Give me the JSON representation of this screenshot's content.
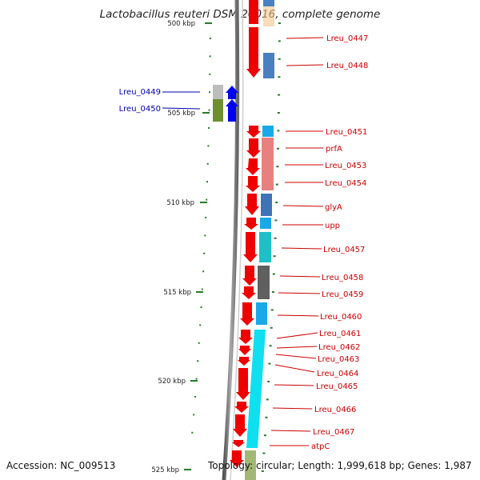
{
  "title": "Lactobacillus reuteri DSM 20016, complete genome",
  "footer": {
    "accession": "Accession: NC_009513",
    "topology": "Topology: circular; Length: 1,999,618 bp; Genes: 1,987"
  },
  "scale_labels": [
    "500 kbp",
    "505 kbp",
    "510 kbp",
    "515 kbp",
    "520 kbp",
    "525 kbp"
  ],
  "right_labels": [
    "Lreu_0447",
    "Lreu_0448",
    "Lreu_0451",
    "prfA",
    "Lreu_0453",
    "Lreu_0454",
    "glyA",
    "upp",
    "Lreu_0457",
    "Lreu_0458",
    "Lreu_0459",
    "Lreu_0460",
    "Lreu_0461",
    "Lreu_0462",
    "Lreu_0463",
    "Lreu_0464",
    "Lreu_0465",
    "Lreu_0466",
    "Lreu_0467",
    "atpC"
  ],
  "left_labels": [
    "Lreu_0449",
    "Lreu_0450"
  ],
  "colors": {
    "forward_gene": "#ee0000",
    "reverse_gene": "#0000ee",
    "right_label": "#cc0000",
    "left_label": "#0000aa",
    "backbone": "#888888",
    "tick": "#2a7a2a"
  }
}
